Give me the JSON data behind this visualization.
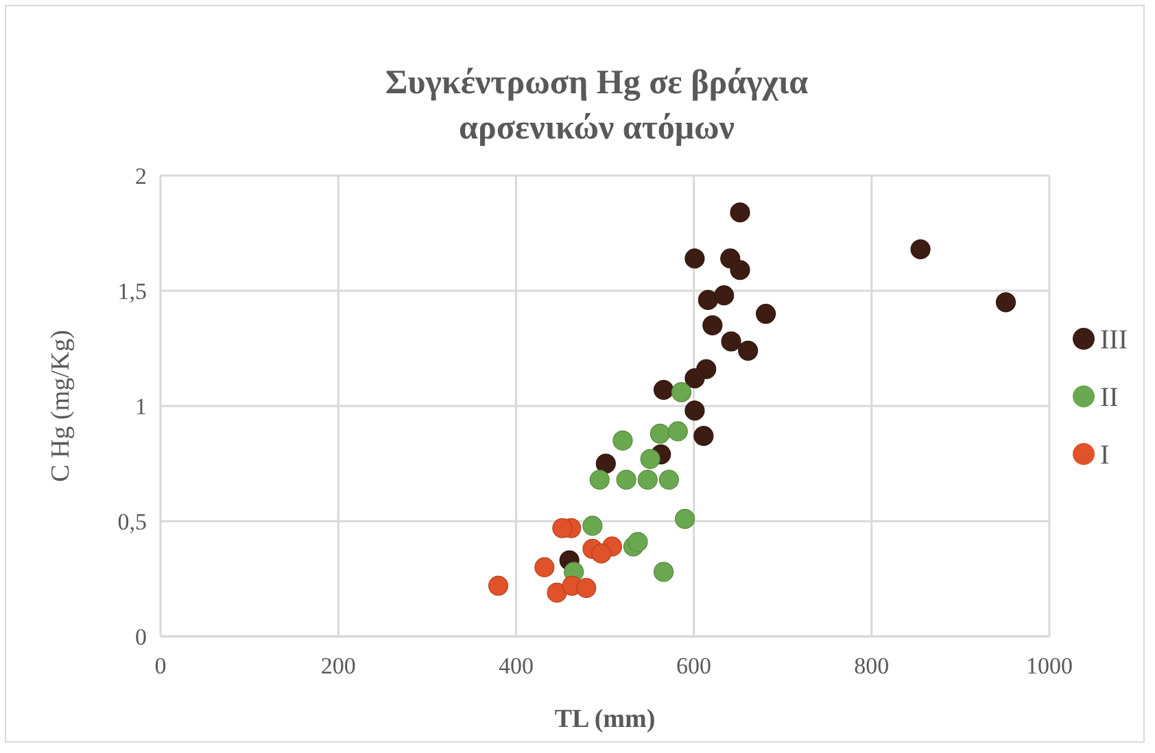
{
  "chart_data": {
    "type": "scatter",
    "title": "Συγκέντρωση Hg σε βράγχια αρσενικών ατόμων",
    "xlabel": "TL (mm)",
    "ylabel": "C Hg (mg/Kg)",
    "xlim": [
      0,
      1000
    ],
    "xticks": [
      0,
      200,
      400,
      600,
      800,
      1000
    ],
    "ylim": [
      0,
      2
    ],
    "yticks": [
      0,
      {
        "value": 0.5,
        "label": "0,5"
      },
      1,
      {
        "value": 1.5,
        "label": "1,5"
      },
      2
    ],
    "grid": true,
    "legend": "right",
    "marker": "circle",
    "series": [
      {
        "name": "III",
        "color": "#3d1c14",
        "x": [
          652,
          855,
          951,
          601,
          641,
          652,
          616,
          634,
          681,
          621,
          642,
          661,
          614,
          601,
          566,
          601,
          611,
          563,
          501,
          460
        ],
        "values": [
          1.84,
          1.68,
          1.45,
          1.64,
          1.64,
          1.59,
          1.46,
          1.48,
          1.4,
          1.35,
          1.28,
          1.24,
          1.16,
          1.12,
          1.07,
          0.98,
          0.87,
          0.79,
          0.75,
          0.33
        ]
      },
      {
        "name": "II",
        "color": "#6aa84f",
        "x": [
          586,
          520,
          562,
          582,
          551,
          494,
          524,
          548,
          572,
          590,
          486,
          532,
          537,
          566,
          465
        ],
        "values": [
          1.06,
          0.85,
          0.88,
          0.89,
          0.77,
          0.68,
          0.68,
          0.68,
          0.68,
          0.51,
          0.48,
          0.39,
          0.41,
          0.28,
          0.28
        ]
      },
      {
        "name": "I",
        "color": "#e0522a",
        "x": [
          462,
          452,
          486,
          508,
          496,
          432,
          380,
          446,
          463,
          479
        ],
        "values": [
          0.47,
          0.47,
          0.38,
          0.39,
          0.36,
          0.3,
          0.22,
          0.19,
          0.22,
          0.21
        ]
      }
    ]
  }
}
